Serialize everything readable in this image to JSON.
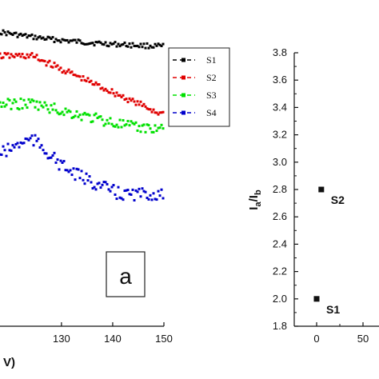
{
  "chart_data": [
    {
      "type": "scatter",
      "panel_label": "a",
      "xlabel_fragment": "V)",
      "xlim": [
        118,
        150
      ],
      "xticks": [
        "130",
        "140",
        "150"
      ],
      "legend_position": "right",
      "series": [
        {
          "name": "S1",
          "color": "#000000"
        },
        {
          "name": "S2",
          "color": "#e00000"
        },
        {
          "name": "S3",
          "color": "#00e000"
        },
        {
          "name": "S4",
          "color": "#0000cc"
        }
      ]
    },
    {
      "type": "scatter",
      "ylabel": "I_a/I_b",
      "ylim": [
        1.8,
        3.8
      ],
      "yticks": [
        "1.8",
        "2.0",
        "2.2",
        "2.4",
        "2.6",
        "2.8",
        "3.0",
        "3.2",
        "3.4",
        "3.6",
        "3.8"
      ],
      "xticks": [
        "0",
        "50"
      ],
      "points": [
        {
          "label": "S1",
          "x": 0,
          "y": 2.0
        },
        {
          "label": "S2",
          "x": 5,
          "y": 2.8
        }
      ]
    }
  ]
}
